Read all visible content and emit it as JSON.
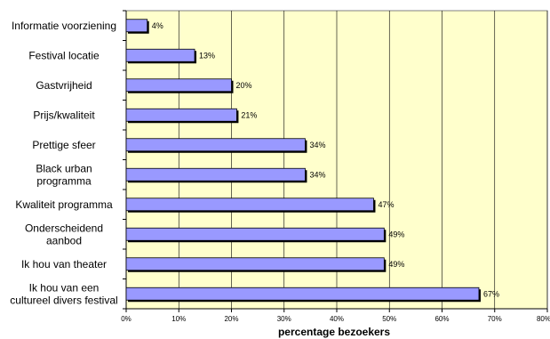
{
  "chart_data": {
    "type": "bar",
    "orientation": "horizontal",
    "categories": [
      "Informatie voorziening",
      "Festival locatie",
      "Gastvrijheid",
      "Prijs/kwaliteit",
      "Prettige sfeer",
      "Black urban\nprogramma",
      "Kwaliteit programma",
      "Onderscheidend\naanbod",
      "Ik hou van theater",
      "Ik hou van een\ncultureel divers festival"
    ],
    "values": [
      4,
      13,
      20,
      21,
      34,
      34,
      47,
      49,
      49,
      67
    ],
    "value_labels": [
      "4%",
      "13%",
      "20%",
      "21%",
      "34%",
      "34%",
      "47%",
      "49%",
      "49%",
      "67%"
    ],
    "xlabel": "percentage bezoekers",
    "ylabel": "",
    "title": "",
    "xlim": [
      0,
      80
    ],
    "xticks": [
      0,
      10,
      20,
      30,
      40,
      50,
      60,
      70,
      80
    ],
    "xtick_labels": [
      "0%",
      "10%",
      "20%",
      "30%",
      "40%",
      "50%",
      "60%",
      "70%",
      "80%"
    ],
    "grid": true,
    "colors": {
      "plot_background": "#ffffcc",
      "bar_fill": "#9999ff",
      "bar_shadow": "#000000",
      "gridline": "#000000"
    }
  }
}
